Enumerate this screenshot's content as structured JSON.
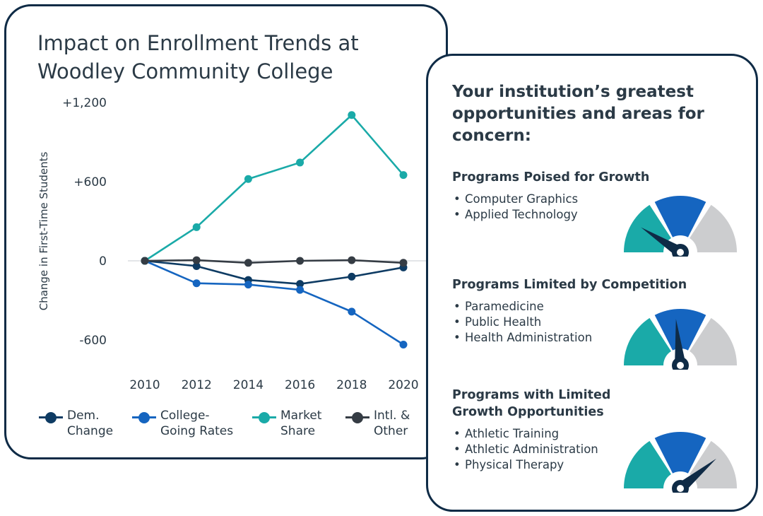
{
  "chart_card": {
    "title": "Impact on Enrollment Trends at Woodley Community College"
  },
  "chart_data": {
    "type": "line",
    "title": "Impact on Enrollment Trends at Woodley Community College",
    "ylabel": "Change in First-Time Students",
    "xlabel": "",
    "x": [
      2010,
      2012,
      2014,
      2016,
      2018,
      2020
    ],
    "x_tick_labels": [
      "2010",
      "2012",
      "2014",
      "2016",
      "2018",
      "2020"
    ],
    "ylim": [
      -900,
      1200
    ],
    "y_ticks": [
      1200,
      600,
      0,
      -600
    ],
    "y_tick_labels": [
      "+1,200",
      "+600",
      "0",
      "-600"
    ],
    "grid": false,
    "zero_line": true,
    "legend_position": "bottom",
    "series": [
      {
        "name": "Dem.\nChange",
        "color": "#0e3b63",
        "values": [
          0,
          -40,
          -145,
          -175,
          -120,
          -50
        ]
      },
      {
        "name": "College-\nGoing Rates",
        "color": "#1565c0",
        "values": [
          0,
          -170,
          -180,
          -220,
          -385,
          -635
        ]
      },
      {
        "name": "Market\nShare",
        "color": "#1aaaa8",
        "values": [
          0,
          255,
          620,
          745,
          1105,
          650
        ]
      },
      {
        "name": "Intl. &\nOther",
        "color": "#353c44",
        "values": [
          0,
          5,
          -15,
          0,
          5,
          -15
        ]
      }
    ]
  },
  "opportunities": {
    "heading": "Your institution’s greatest opportunities and areas for concern:",
    "bullet": "•",
    "sections": [
      {
        "title": "Programs Poised for Growth",
        "items": [
          "Computer Graphics",
          "Applied Technology"
        ],
        "gauge_value": 0.18
      },
      {
        "title": "Programs Limited by Competition",
        "items": [
          "Paramedicine",
          "Public Health",
          "Health Administration"
        ],
        "gauge_value": 0.47
      },
      {
        "title": "Programs with Limited\nGrowth Opportunities",
        "items": [
          "Athletic Training",
          "Athletic Administration",
          "Physical Therapy"
        ],
        "gauge_value": 0.78
      }
    ],
    "gauge_colors": [
      "#1aaaa8",
      "#1565c0",
      "#cccdcf"
    ],
    "needle_color": "#0f2b46"
  }
}
